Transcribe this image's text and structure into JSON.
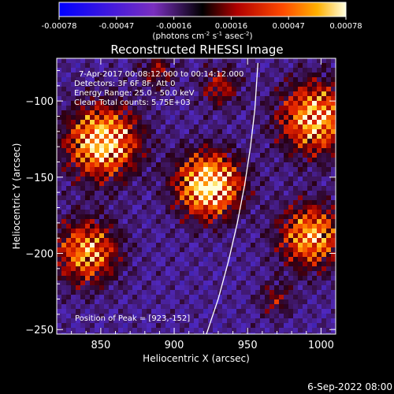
{
  "chart_data": {
    "type": "heatmap",
    "title": "Reconstructed RHESSI Image",
    "xlabel": "Heliocentric X (arcsec)",
    "ylabel": "Heliocentric Y (arcsec)",
    "xlim": [
      820,
      1010
    ],
    "ylim": [
      -253,
      -72
    ],
    "x_ticks": [
      850,
      900,
      950,
      1000
    ],
    "y_ticks": [
      -100,
      -150,
      -200,
      -250
    ],
    "colorbar": {
      "min": -0.00078,
      "max": 0.00078,
      "ticks": [
        "-0.00078",
        "-0.00047",
        "-0.00016",
        "0.00016",
        "0.00047",
        "0.00078"
      ],
      "unit_label": "(photons cm",
      "unit_exp1": "-2",
      "unit_mid": " s",
      "unit_exp2": "-1",
      "unit_mid2": " asec",
      "unit_exp3": "-2",
      "unit_end": ")"
    },
    "info_lines": [
      "7-Apr-2017 00:08:12.000 to 00:14:12.000",
      "Detectors: 3F 6F 8F, Att 0",
      "Energy Range: 25.0 - 50.0 keV",
      "Clean     Total counts: 5.75E+03"
    ],
    "peak_label": "Position of Peak = [923,-152]",
    "limb_curve": [
      [
        922,
        -253
      ],
      [
        930,
        -230
      ],
      [
        937,
        -205
      ],
      [
        943,
        -180
      ],
      [
        948,
        -155
      ],
      [
        952,
        -130
      ],
      [
        955,
        -105
      ],
      [
        957,
        -75
      ]
    ]
  },
  "footer": {
    "timestamp": "6-Sep-2022 08:00"
  }
}
